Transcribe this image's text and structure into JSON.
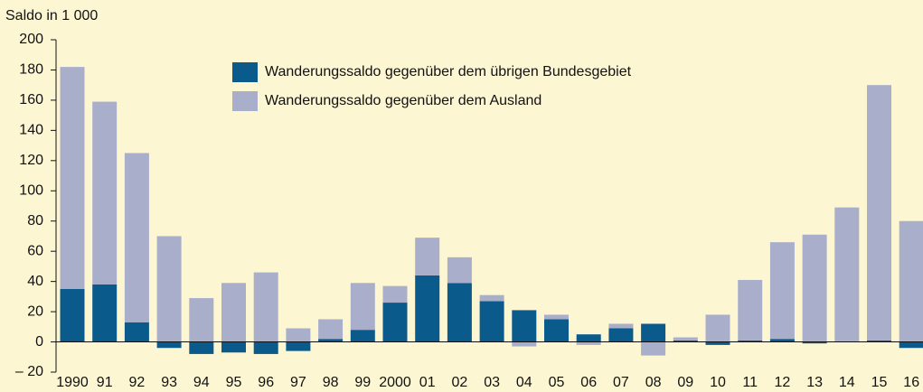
{
  "chart_data": {
    "type": "bar",
    "stacked": true,
    "y_label": "Saldo in 1 000",
    "categories": [
      "1990",
      "91",
      "92",
      "93",
      "94",
      "95",
      "96",
      "97",
      "98",
      "99",
      "2000",
      "01",
      "02",
      "03",
      "04",
      "05",
      "06",
      "07",
      "08",
      "09",
      "10",
      "11",
      "12",
      "13",
      "14",
      "15",
      "16"
    ],
    "series": [
      {
        "name": "Wanderungssaldo gegenüber dem übrigen Bundesgebiet",
        "color": "#0b5a8c",
        "values": [
          35,
          38,
          13,
          -4,
          -8,
          -7,
          -8,
          -6,
          2,
          8,
          26,
          44,
          39,
          27,
          21,
          15,
          5,
          9,
          12,
          1,
          -2,
          1,
          2,
          -1,
          0,
          1,
          -4
        ]
      },
      {
        "name": "Wanderungssaldo gegenüber dem Ausland",
        "color": "#a9afcb",
        "values": [
          147,
          121,
          112,
          70,
          29,
          39,
          46,
          9,
          13,
          31,
          11,
          25,
          17,
          4,
          -3,
          3,
          -2,
          3,
          -9,
          2,
          18,
          40,
          64,
          71,
          89,
          169,
          80
        ]
      }
    ],
    "ylim": [
      -20,
      200
    ],
    "yticks": [
      {
        "value": -20,
        "label": "– 20"
      },
      0,
      20,
      40,
      60,
      80,
      100,
      120,
      140,
      160,
      180,
      200
    ],
    "legend": "top"
  }
}
